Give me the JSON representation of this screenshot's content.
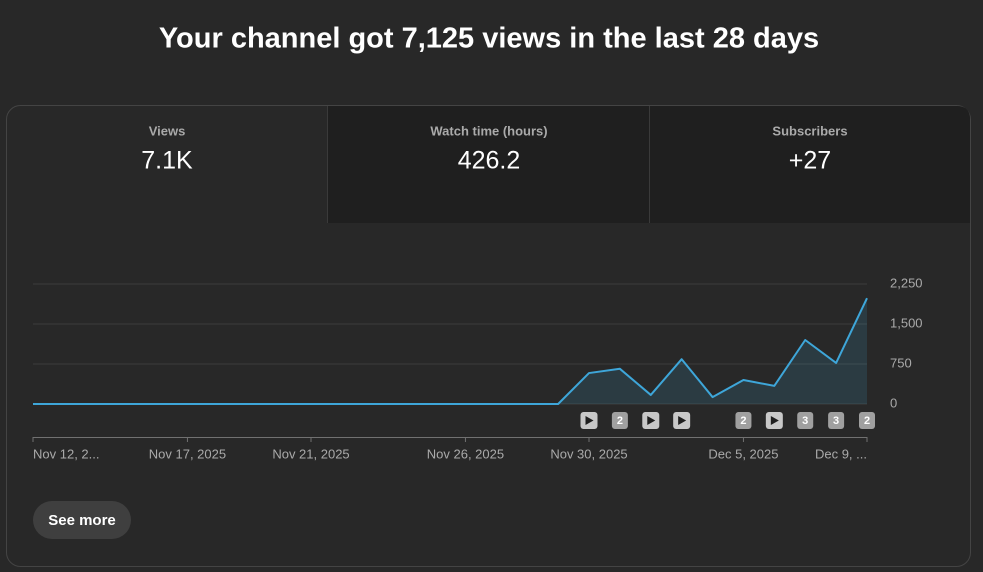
{
  "header": {
    "title": "Your channel got 7,125 views in the last 28 days"
  },
  "tabs": [
    {
      "label": "Views",
      "value": "7.1K"
    },
    {
      "label": "Watch time (hours)",
      "value": "426.2"
    },
    {
      "label": "Subscribers",
      "value": "+27"
    }
  ],
  "chart_data": {
    "type": "line",
    "categories": [
      "Nov 12, 2...",
      null,
      null,
      null,
      null,
      "Nov 17, 2025",
      null,
      null,
      null,
      "Nov 21, 2025",
      null,
      null,
      null,
      null,
      "Nov 26, 2025",
      null,
      null,
      null,
      "Nov 30, 2025",
      null,
      null,
      null,
      null,
      "Dec 5, 2025",
      null,
      null,
      null,
      "Dec 9, ..."
    ],
    "values": [
      0,
      0,
      0,
      0,
      0,
      0,
      0,
      0,
      0,
      0,
      0,
      0,
      0,
      0,
      0,
      0,
      0,
      0,
      580,
      660,
      170,
      840,
      130,
      450,
      340,
      1200,
      770,
      1985
    ],
    "uploads": [
      null,
      null,
      null,
      null,
      null,
      null,
      null,
      null,
      null,
      null,
      null,
      null,
      null,
      null,
      null,
      null,
      null,
      null,
      1,
      2,
      1,
      1,
      null,
      2,
      1,
      3,
      3,
      2
    ],
    "color": "#3ea6d9",
    "ylim": [
      0,
      2250
    ],
    "yticks": [
      0,
      750,
      {
        "value": 1500,
        "label": "1,500"
      },
      {
        "value": 2250,
        "label": "2,250"
      }
    ],
    "grid": true
  },
  "button": {
    "label": "See more"
  }
}
